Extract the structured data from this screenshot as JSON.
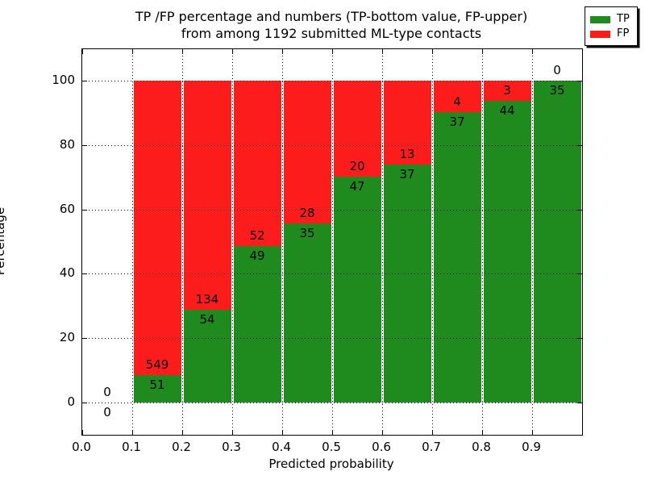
{
  "title": {
    "line1": "TP /FP percentage and numbers (TP-bottom value, FP-upper)",
    "line2": "from among 1192 submitted ML-type contacts"
  },
  "chart_data": {
    "type": "bar",
    "stacked": true,
    "title": "TP /FP percentage and numbers (TP-bottom value, FP-upper) from among 1192 submitted ML-type contacts",
    "xlabel": "Predicted probability",
    "ylabel": "Percentage",
    "xlim": [
      0.0,
      1.0
    ],
    "ylim": [
      -10,
      110
    ],
    "grid": "dotted",
    "x_ticks": [
      0.0,
      0.1,
      0.2,
      0.3,
      0.4,
      0.5,
      0.6,
      0.7,
      0.8,
      0.9
    ],
    "x_tick_labels": [
      "0.0",
      "0.1",
      "0.2",
      "0.3",
      "0.4",
      "0.5",
      "0.6",
      "0.7",
      "0.8",
      "0.9"
    ],
    "y_ticks": [
      0,
      20,
      40,
      60,
      80,
      100
    ],
    "y_tick_labels": [
      "0",
      "20",
      "40",
      "60",
      "80",
      "100"
    ],
    "bin_width": 0.1,
    "colors": {
      "tp": "#1f8b1f",
      "fp": "#fd1c1c"
    },
    "legend": {
      "location": "upper right",
      "entries": [
        {
          "label": "TP",
          "color": "#1f8b1f"
        },
        {
          "label": "FP",
          "color": "#fd1c1c"
        }
      ]
    },
    "bins": [
      {
        "range": [
          0.0,
          0.1
        ],
        "tp": 0,
        "fp": 0,
        "tp_pct": 0
      },
      {
        "range": [
          0.1,
          0.2
        ],
        "tp": 51,
        "fp": 549,
        "tp_pct": 8.5
      },
      {
        "range": [
          0.2,
          0.3
        ],
        "tp": 54,
        "fp": 134,
        "tp_pct": 28.72
      },
      {
        "range": [
          0.3,
          0.4
        ],
        "tp": 49,
        "fp": 52,
        "tp_pct": 48.51
      },
      {
        "range": [
          0.4,
          0.5
        ],
        "tp": 35,
        "fp": 28,
        "tp_pct": 55.56
      },
      {
        "range": [
          0.5,
          0.6
        ],
        "tp": 47,
        "fp": 20,
        "tp_pct": 70.15
      },
      {
        "range": [
          0.6,
          0.7
        ],
        "tp": 37,
        "fp": 13,
        "tp_pct": 74.0
      },
      {
        "range": [
          0.7,
          0.8
        ],
        "tp": 37,
        "fp": 4,
        "tp_pct": 90.24
      },
      {
        "range": [
          0.8,
          0.9
        ],
        "tp": 44,
        "fp": 3,
        "tp_pct": 93.62
      },
      {
        "range": [
          0.9,
          1.0
        ],
        "tp": 35,
        "fp": 0,
        "tp_pct": 100.0
      }
    ]
  }
}
